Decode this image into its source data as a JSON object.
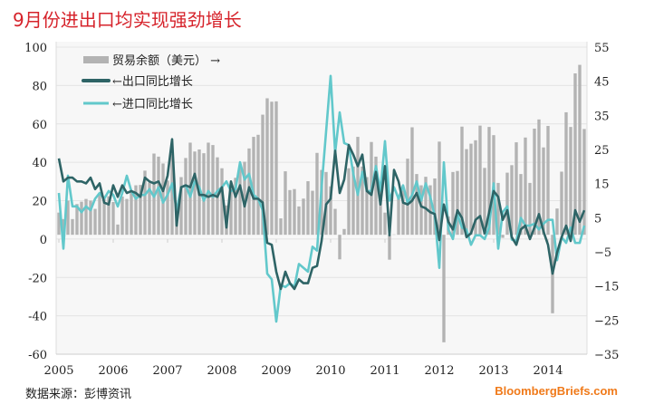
{
  "title": "9月份进出口均实现强劲增长",
  "source": "数据来源：彭博资讯",
  "brand": "BloombergBriefs.com",
  "chart_data": {
    "type": "bar+line",
    "x_start": "2005-01",
    "x_end": "2014-09",
    "frequency": "monthly",
    "x_tick_labels": [
      "2005",
      "2006",
      "2007",
      "2008",
      "2009",
      "2010",
      "2011",
      "2012",
      "2013",
      "2014"
    ],
    "left_axis": {
      "ylim": [
        -60,
        100
      ],
      "ticks": [
        "100",
        "80",
        "60",
        "40",
        "20",
        "0",
        "-20",
        "-40",
        "-60"
      ]
    },
    "right_axis": {
      "ylim": [
        -35,
        55
      ],
      "ticks": [
        "55",
        "45",
        "35",
        "25",
        "15",
        "5",
        "-5",
        "-15",
        "-25",
        "-35"
      ]
    },
    "grid": true,
    "legend_placement": "top-left",
    "colors": {
      "balance": "#b3b3b3",
      "exports": "#2e6466",
      "imports": "#62c8cb",
      "title": "#d6232b",
      "brand": "#f07a1a"
    },
    "series": [
      {
        "name": "贸易余额（美元）",
        "legend_suffix": "→",
        "axis": "right",
        "kind": "bar",
        "values": [
          6.5,
          4.6,
          10,
          4.6,
          9,
          9.7,
          10.5,
          10,
          7.6,
          12,
          10.5,
          11.3,
          9.6,
          3.0,
          11.2,
          10.5,
          13,
          14.5,
          14.6,
          18.8,
          15.3,
          23.8,
          22.9,
          20.9,
          15.9,
          23.7,
          6.9,
          16.9,
          22.5,
          27,
          24.4,
          25,
          23.9,
          27,
          26.3,
          22.7,
          19.5,
          8.6,
          13.4,
          16.7,
          20.2,
          21.4,
          25.3,
          28.7,
          29.3,
          35.2,
          40,
          39,
          39.1,
          4.8,
          18.6,
          13.1,
          13.4,
          8.3,
          10.6,
          15.7,
          12.9,
          24,
          19,
          18.4,
          14.2,
          7.6,
          -7.2,
          1.7,
          19.5,
          20,
          28.7,
          20,
          16.9,
          27.2,
          22.9,
          13.1,
          6.5,
          -7.3,
          0.1,
          11.4,
          13,
          22.3,
          31.5,
          17.8,
          14.5,
          17,
          14.5,
          16.5,
          27.3,
          -31.5,
          5.4,
          18.4,
          18.7,
          31.7,
          25.1,
          26.7,
          27.7,
          32,
          19.6,
          31.6,
          29.2,
          15.2,
          -0.9,
          18.2,
          20.4,
          27.1,
          17.8,
          28.5,
          15.2,
          31.1,
          33.8,
          25.6,
          31.9,
          -23,
          7.7,
          18.5,
          35.9,
          31.6,
          47.3,
          49.8,
          31
        ]
      },
      {
        "name": "出口同比增长",
        "legend_prefix": "←",
        "axis": "left",
        "kind": "line",
        "values": [
          42,
          30,
          32,
          32,
          30,
          30,
          29,
          32,
          26,
          29,
          19,
          18,
          28,
          22,
          28,
          24,
          25,
          24,
          22,
          32,
          30,
          29,
          30,
          25,
          33,
          52,
          7,
          27,
          28,
          27,
          34,
          23,
          23,
          22,
          23,
          22,
          27,
          6,
          30,
          22,
          28,
          17,
          27,
          21,
          21,
          19,
          -2,
          -3,
          -17,
          -26,
          -17,
          -23,
          -26,
          -21,
          -23,
          -23,
          -15,
          -14,
          -1,
          18,
          21,
          46,
          24,
          31,
          49,
          44,
          38,
          44,
          25,
          23,
          35,
          18,
          38,
          2,
          36,
          30,
          19,
          18,
          20,
          24,
          17,
          16,
          14,
          13,
          -0.5,
          18,
          9,
          5,
          15,
          11,
          1,
          3,
          10,
          12,
          3,
          14,
          25,
          22,
          10,
          15,
          1,
          -3,
          5,
          7,
          0,
          6,
          13,
          4,
          -3,
          -18,
          -7,
          1,
          7,
          -1,
          15,
          9,
          15
        ]
      },
      {
        "name": "进口同比增长",
        "legend_prefix": "←",
        "axis": "left",
        "kind": "line",
        "values": [
          24,
          -5,
          33,
          17,
          17,
          14,
          17,
          15,
          21,
          24,
          21,
          25,
          23,
          17,
          24,
          33,
          25,
          21,
          23,
          23,
          26,
          22,
          27,
          19,
          23,
          29,
          15,
          27,
          28,
          22,
          30,
          27,
          20,
          25,
          22,
          25,
          27,
          30,
          25,
          26,
          40,
          31,
          34,
          23,
          21,
          15,
          -18,
          -21,
          -43,
          -24,
          -25,
          -23,
          -25,
          -13,
          -15,
          -17,
          -4,
          -6,
          27,
          56,
          85,
          45,
          66,
          50,
          49,
          34,
          23,
          35,
          25,
          25,
          38,
          25,
          51,
          20,
          27,
          21,
          28,
          19,
          23,
          30,
          20,
          29,
          22,
          12,
          -15,
          40,
          5,
          0,
          13,
          6,
          5,
          -3,
          2,
          2,
          0,
          6,
          29,
          -5,
          14,
          17,
          -0.3,
          -1,
          11,
          7,
          7,
          8,
          5,
          8,
          10,
          10,
          -11,
          1,
          -2,
          6,
          -2,
          -2,
          7
        ]
      }
    ]
  }
}
